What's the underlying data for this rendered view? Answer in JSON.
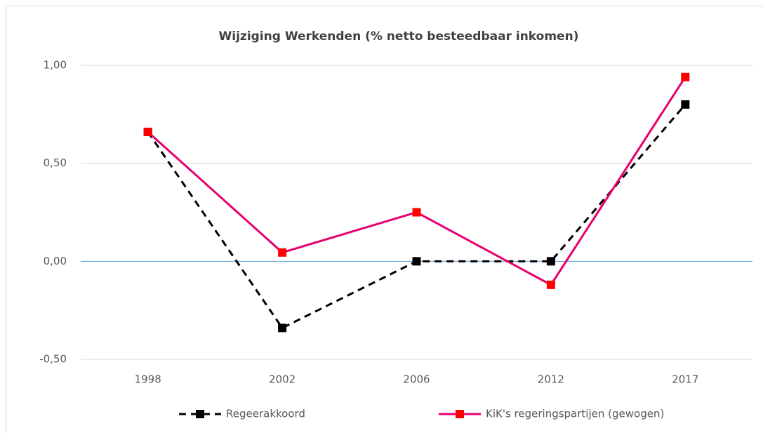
{
  "chart_data": {
    "type": "line",
    "title": "Wijziging Werkenden (% netto besteedbaar inkomen)",
    "categories": [
      "1998",
      "2002",
      "2006",
      "2012",
      "2017"
    ],
    "series": [
      {
        "name": "Regeerakkoord",
        "color": "#000000",
        "dash": true,
        "values": [
          0.66,
          -0.34,
          0,
          0,
          0.8
        ]
      },
      {
        "name": "KiK's regeringspartijen (gewogen)",
        "color": "#e6006e",
        "marker_color": "#ff0000",
        "dash": false,
        "values": [
          0.66,
          0.045,
          0.25,
          -0.12,
          0.94
        ]
      }
    ],
    "ylim": [
      -0.5,
      1
    ],
    "yticks": [
      {
        "value": -0.5,
        "label": "-0,50"
      },
      {
        "value": 0,
        "label": "0,00"
      },
      {
        "value": 0.5,
        "label": "0,50"
      },
      {
        "value": 1,
        "label": "1,00"
      }
    ],
    "grid": true,
    "legend": "bottom"
  }
}
